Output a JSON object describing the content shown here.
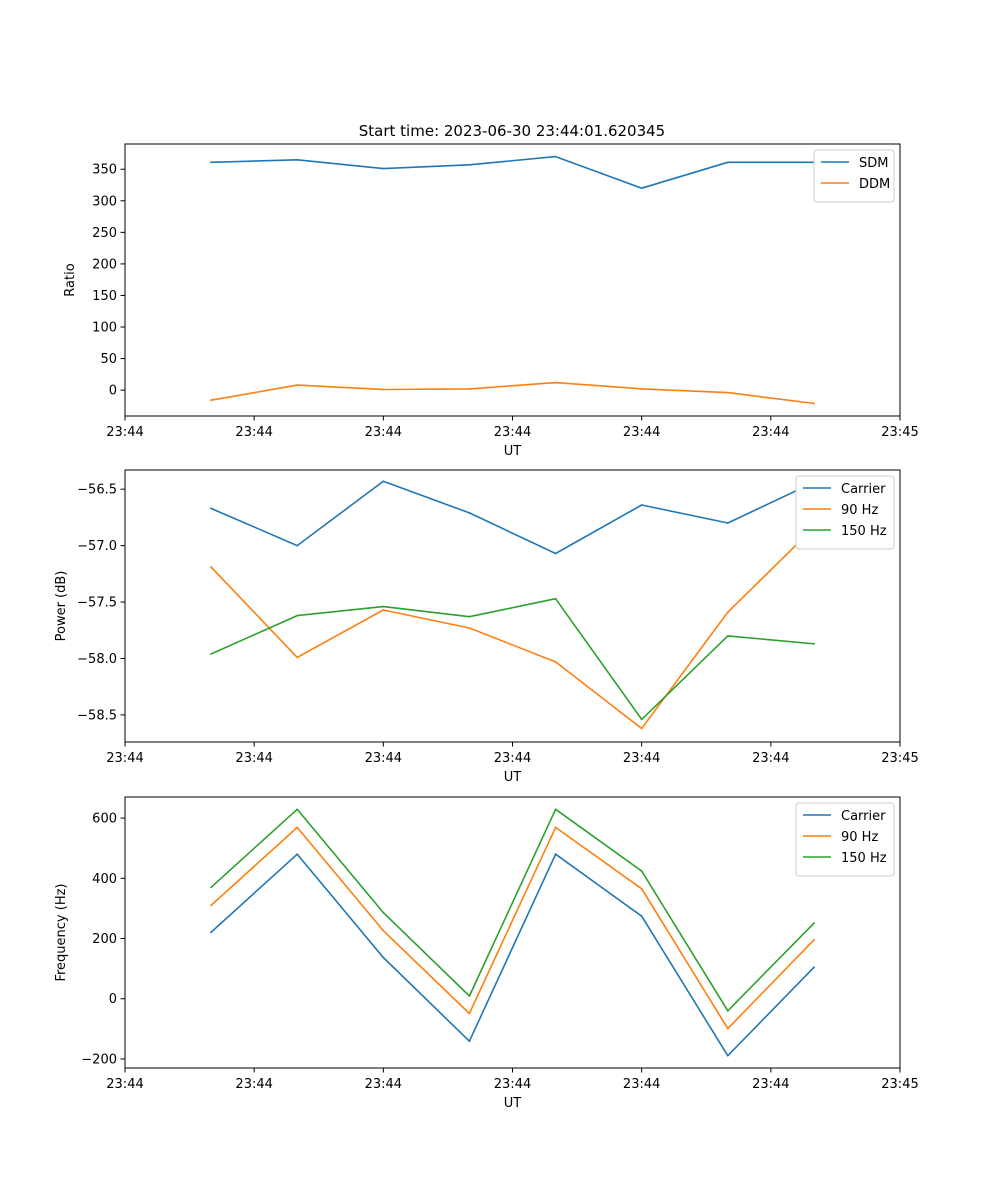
{
  "figure": {
    "title": "Start time: 2023-06-30 23:44:01.620345"
  },
  "chart_data": [
    {
      "type": "line",
      "xlabel": "UT",
      "ylabel": "Ratio",
      "x": [
        1,
        2,
        3,
        4,
        5,
        6,
        7,
        8
      ],
      "xlim": [
        0,
        9
      ],
      "xtick_positions": [
        0,
        1.5,
        3,
        4.5,
        6,
        7.5,
        9
      ],
      "xtick_labels": [
        "23:44",
        "23:44",
        "23:44",
        "23:44",
        "23:44",
        "23:44",
        "23:45"
      ],
      "ylim": [
        -41,
        390
      ],
      "yticks": [
        0,
        50,
        100,
        150,
        200,
        250,
        300,
        350
      ],
      "yticklabels": [
        "0",
        "50",
        "100",
        "150",
        "200",
        "250",
        "300",
        "350"
      ],
      "grid": false,
      "legend": "top-right",
      "series": [
        {
          "name": "SDM",
          "color": "#1f77b4",
          "values": [
            361,
            365,
            351,
            357,
            370,
            320,
            361,
            361
          ]
        },
        {
          "name": "DDM",
          "color": "#ff7f0e",
          "values": [
            -16,
            8,
            1,
            2,
            12,
            2,
            -4,
            -21
          ]
        }
      ]
    },
    {
      "type": "line",
      "xlabel": "UT",
      "ylabel": "Power (dB)",
      "x": [
        1,
        2,
        3,
        4,
        5,
        6,
        7,
        8
      ],
      "xlim": [
        0,
        9
      ],
      "xtick_positions": [
        0,
        1.5,
        3,
        4.5,
        6,
        7.5,
        9
      ],
      "xtick_labels": [
        "23:44",
        "23:44",
        "23:44",
        "23:44",
        "23:44",
        "23:44",
        "23:45"
      ],
      "ylim": [
        -58.74,
        -56.33
      ],
      "yticks": [
        -58.5,
        -58.0,
        -57.5,
        -57.0,
        -56.5
      ],
      "yticklabels": [
        "−58.5",
        "−58.0",
        "−57.5",
        "−57.0",
        "−56.5"
      ],
      "grid": false,
      "legend": "top-right",
      "series": [
        {
          "name": "Carrier",
          "color": "#1f77b4",
          "values": [
            -56.67,
            -57.0,
            -56.43,
            -56.71,
            -57.07,
            -56.64,
            -56.8,
            -56.44
          ]
        },
        {
          "name": "90 Hz",
          "color": "#ff7f0e",
          "values": [
            -57.19,
            -57.99,
            -57.57,
            -57.73,
            -58.03,
            -58.62,
            -57.59,
            -56.84
          ]
        },
        {
          "name": "150 Hz",
          "color": "#2ca02c",
          "values": [
            -57.96,
            -57.62,
            -57.54,
            -57.63,
            -57.47,
            -58.54,
            -57.8,
            -57.87
          ]
        }
      ]
    },
    {
      "type": "line",
      "xlabel": "UT",
      "ylabel": "Frequency (Hz)",
      "x": [
        1,
        2,
        3,
        4,
        5,
        6,
        7,
        8
      ],
      "xlim": [
        0,
        9
      ],
      "xtick_positions": [
        0,
        1.5,
        3,
        4.5,
        6,
        7.5,
        9
      ],
      "xtick_labels": [
        "23:44",
        "23:44",
        "23:44",
        "23:44",
        "23:44",
        "23:44",
        "23:45"
      ],
      "ylim": [
        -230,
        670
      ],
      "yticks": [
        -200,
        0,
        200,
        400,
        600
      ],
      "yticklabels": [
        "−200",
        "0",
        "200",
        "400",
        "600"
      ],
      "grid": false,
      "legend": "top-right",
      "series": [
        {
          "name": "Carrier",
          "color": "#1f77b4",
          "values": [
            221,
            480,
            137,
            -141,
            480,
            274,
            -189,
            104
          ]
        },
        {
          "name": "90 Hz",
          "color": "#ff7f0e",
          "values": [
            310,
            569,
            226,
            -49,
            569,
            365,
            -99,
            195
          ]
        },
        {
          "name": "150 Hz",
          "color": "#2ca02c",
          "values": [
            370,
            629,
            286,
            9,
            629,
            424,
            -40,
            251
          ]
        }
      ]
    }
  ]
}
